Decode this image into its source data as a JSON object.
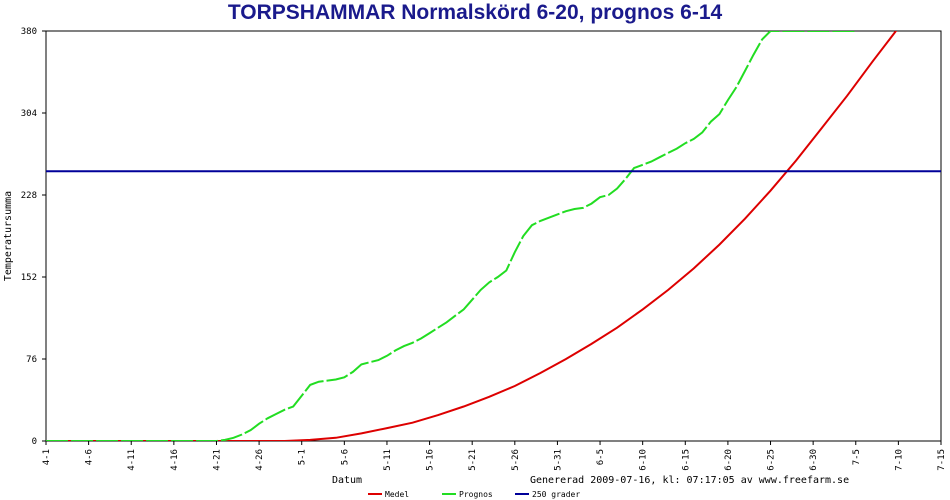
{
  "chart_data": {
    "type": "line",
    "title": "TORPSHAMMAR Normalskörd 6-20, prognos 6-14",
    "xlabel": "Datum",
    "ylabel": "Temperatursumma",
    "footer": "Genererad 2009-07-16, kl: 07:17:05 av www.freefarm.se",
    "x_ticks": [
      "4-1",
      "4-6",
      "4-11",
      "4-16",
      "4-21",
      "4-26",
      "5-1",
      "5-6",
      "5-11",
      "5-16",
      "5-21",
      "5-26",
      "5-31",
      "6-5",
      "6-10",
      "6-15",
      "6-20",
      "6-25",
      "6-30",
      "7-5",
      "7-10",
      "7-15"
    ],
    "x_range_days": [
      1,
      106
    ],
    "ylim": [
      0,
      380
    ],
    "y_ticks": [
      0,
      76,
      152,
      228,
      304,
      380
    ],
    "grid": false,
    "legend_position": "bottom",
    "series": [
      {
        "name": "Medel",
        "color": "#dd0000",
        "style": "solid",
        "x": [
          1,
          21,
          29,
          32,
          35,
          38,
          41,
          44,
          47,
          50,
          53,
          56,
          59,
          62,
          65,
          68,
          71,
          74,
          77,
          80,
          83,
          86,
          89,
          92,
          95,
          98,
          101
        ],
        "y": [
          0,
          0,
          0,
          1,
          3,
          7,
          12,
          17,
          24,
          32,
          41,
          51,
          63,
          76,
          90,
          105,
          122,
          140,
          160,
          182,
          206,
          232,
          260,
          290,
          320,
          352,
          383
        ]
      },
      {
        "name": "Prognos",
        "color": "#22dd22",
        "style": "dashed",
        "x": [
          1,
          21,
          22,
          23,
          24,
          25,
          26,
          27,
          28,
          29,
          30,
          31,
          32,
          33,
          34,
          35,
          36,
          37,
          38,
          39,
          40,
          41,
          42,
          43,
          44,
          45,
          46,
          47,
          48,
          49,
          50,
          51,
          52,
          53,
          54,
          55,
          56,
          57,
          58,
          59,
          60,
          61,
          62,
          63,
          64,
          65,
          66,
          67,
          68,
          69,
          70,
          71,
          72,
          73,
          74,
          75,
          76,
          77,
          78,
          79,
          80,
          81,
          82,
          83,
          84,
          85,
          86,
          87,
          88,
          89,
          90,
          91,
          92,
          93,
          94,
          95,
          96
        ],
        "y": [
          0,
          0,
          1,
          3,
          6,
          10,
          16,
          21,
          25,
          29,
          32,
          42,
          52,
          55,
          56,
          57,
          59,
          64,
          71,
          73,
          75,
          79,
          84,
          88,
          91,
          95,
          100,
          105,
          110,
          116,
          122,
          131,
          140,
          147,
          152,
          158,
          175,
          190,
          200,
          204,
          207,
          210,
          213,
          215,
          216,
          220,
          226,
          228,
          234,
          243,
          253,
          256,
          259,
          263,
          267,
          271,
          276,
          280,
          286,
          296,
          303,
          316,
          328,
          343,
          358,
          372,
          380,
          380,
          380,
          380,
          380,
          380,
          380,
          380,
          380,
          380,
          380
        ]
      },
      {
        "name": "250 grader",
        "color": "#000099",
        "style": "solid",
        "x": [
          1,
          106
        ],
        "y": [
          250,
          250
        ]
      }
    ]
  }
}
